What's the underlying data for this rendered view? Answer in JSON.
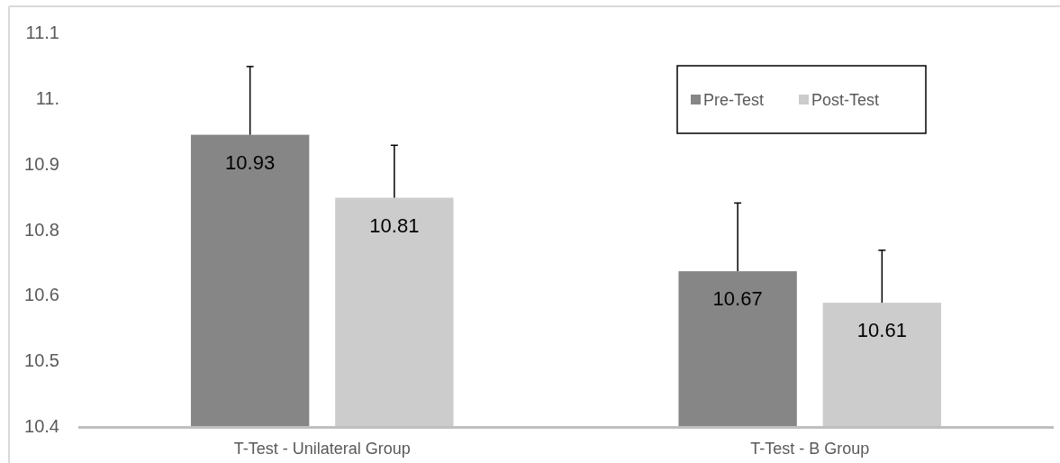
{
  "chart_data": {
    "type": "bar",
    "categories": [
      "T-Test - Unilateral Group",
      "T-Test - B Group"
    ],
    "series": [
      {
        "name": "Pre-Test",
        "color": "#868686",
        "values": [
          10.93,
          10.67
        ],
        "errors": [
          [
            10.93,
            11.06
          ],
          [
            10.67,
            10.8
          ]
        ]
      },
      {
        "name": "Post-Test",
        "color": "#cccccc",
        "values": [
          10.81,
          10.61
        ],
        "errors": [
          [
            10.81,
            10.91
          ],
          [
            10.61,
            10.71
          ]
        ]
      }
    ],
    "ylim": [
      10.375,
      11.125
    ],
    "yticks": [
      {
        "value": 10.375,
        "label": "10.4"
      },
      10.5,
      {
        "value": 10.625,
        "label": "10.6"
      },
      {
        "value": 10.75,
        "label": "10.8"
      },
      {
        "value": 10.875,
        "label": "10.9"
      },
      {
        "value": 11,
        "label": "11."
      },
      {
        "value": 11.125,
        "label": "11.1"
      }
    ],
    "data_labels": true,
    "legend": "top right",
    "grid": false
  }
}
